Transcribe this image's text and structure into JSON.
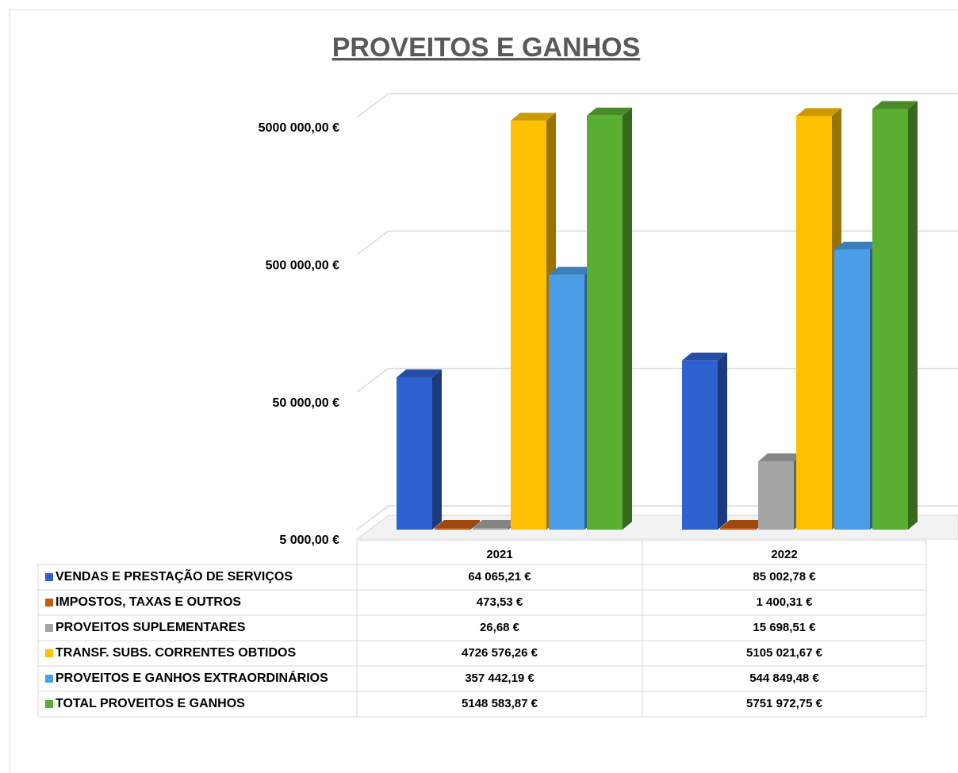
{
  "chart_data": {
    "type": "bar3d",
    "title": "PROVEITOS E GANHOS",
    "categories": [
      "2021",
      "2022"
    ],
    "log_scale": true,
    "grid": true,
    "ylim": [
      5000,
      5000000
    ],
    "yticks": [
      {
        "value": 5000,
        "label": "5 000,00 €"
      },
      {
        "value": 50000,
        "label": "50 000,00 €"
      },
      {
        "value": 500000,
        "label": "500 000,00 €"
      },
      {
        "value": 5000000,
        "label": "5000 000,00 €"
      }
    ],
    "series": [
      {
        "name": "VENDAS E PRESTAÇÃO DE SERVIÇOS",
        "color": "#2f62d0",
        "values": [
          64065.21,
          85002.78
        ],
        "value_labels": [
          "64 065,21 €",
          "85 002,78 €"
        ]
      },
      {
        "name": "IMPOSTOS, TAXAS E OUTROS",
        "color": "#c55a11",
        "values": [
          473.53,
          1400.31
        ],
        "value_labels": [
          "473,53 €",
          "1 400,31 €"
        ]
      },
      {
        "name": "PROVEITOS SUPLEMENTARES",
        "color": "#a5a5a5",
        "values": [
          26.68,
          15698.51
        ],
        "value_labels": [
          "26,68 €",
          "15 698,51 €"
        ]
      },
      {
        "name": "TRANSF. SUBS. CORRENTES OBTIDOS",
        "color": "#ffc000",
        "values": [
          4726576.26,
          5105021.67
        ],
        "value_labels": [
          "4726 576,26 €",
          "5105 021,67 €"
        ]
      },
      {
        "name": "PROVEITOS E GANHOS EXTRAORDINÁRIOS",
        "color": "#4a9ee8",
        "values": [
          357442.19,
          544849.48
        ],
        "value_labels": [
          "357 442,19 €",
          "544 849,48 €"
        ]
      },
      {
        "name": "TOTAL PROVEITOS E GANHOS",
        "color": "#5aae32",
        "values": [
          5148583.87,
          5751972.75
        ],
        "value_labels": [
          "5148 583,87 €",
          "5751 972,75 €"
        ]
      }
    ]
  }
}
